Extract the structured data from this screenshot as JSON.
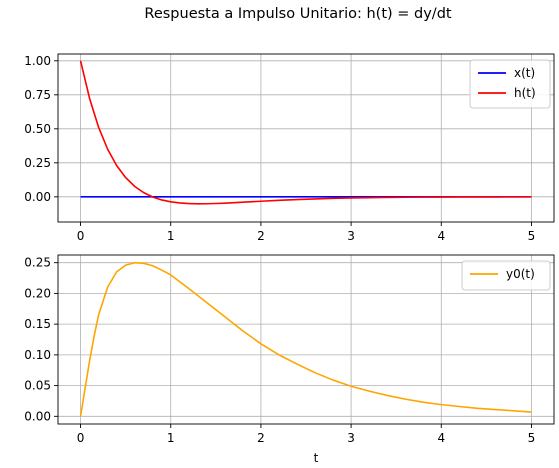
{
  "figure": {
    "title": "Respuesta a Impulso Unitario: h(t) = dy/dt"
  },
  "chart_data": [
    {
      "type": "line",
      "title": "",
      "xlabel": "",
      "ylabel": "",
      "xlim": [
        -0.25,
        5.25
      ],
      "ylim": [
        -0.185,
        1.05
      ],
      "xticks": [
        0,
        1,
        2,
        3,
        4,
        5
      ],
      "xtick_labels": [
        "0",
        "1",
        "2",
        "3",
        "4",
        "5"
      ],
      "yticks": [
        0.0,
        0.25,
        0.5,
        0.75,
        1.0
      ],
      "ytick_labels": [
        "0.00",
        "0.25",
        "0.50",
        "0.75",
        "1.00"
      ],
      "grid": true,
      "legend": "top-right",
      "series": [
        {
          "name": "x(t)",
          "color": "#0000ff",
          "x": [
            0,
            5
          ],
          "y": [
            0,
            0
          ]
        },
        {
          "name": "h(t)",
          "color": "#ff0000",
          "x": [
            0,
            0.1,
            0.2,
            0.3,
            0.4,
            0.5,
            0.6,
            0.7,
            0.8,
            0.9,
            1.0,
            1.1,
            1.2,
            1.3,
            1.4,
            1.5,
            1.6,
            1.8,
            2.0,
            2.2,
            2.4,
            2.6,
            2.8,
            3.0,
            3.2,
            3.4,
            3.6,
            3.8,
            4.0,
            4.2,
            4.4,
            4.6,
            4.8,
            5.0
          ],
          "y": [
            1.0,
            0.7238,
            0.5117,
            0.3507,
            0.2301,
            0.1414,
            0.0769,
            0.0309,
            -0.0011,
            -0.0229,
            -0.0368,
            -0.0452,
            -0.0496,
            -0.0512,
            -0.0508,
            -0.0491,
            -0.0464,
            -0.0397,
            -0.0325,
            -0.0258,
            -0.0199,
            -0.0151,
            -0.0112,
            -0.0082,
            -0.006,
            -0.0043,
            -0.003,
            -0.0021,
            -0.0015,
            -0.001,
            -0.0007,
            -0.0005,
            -0.0003,
            -0.0002
          ]
        }
      ]
    },
    {
      "type": "line",
      "title": "",
      "xlabel": "t",
      "ylabel": "",
      "xlim": [
        -0.25,
        5.25
      ],
      "ylim": [
        -0.0125,
        0.2625
      ],
      "xticks": [
        0,
        1,
        2,
        3,
        4,
        5
      ],
      "xtick_labels": [
        "0",
        "1",
        "2",
        "3",
        "4",
        "5"
      ],
      "yticks": [
        0.0,
        0.05,
        0.1,
        0.15,
        0.2,
        0.25
      ],
      "ytick_labels": [
        "0.00",
        "0.05",
        "0.10",
        "0.15",
        "0.20",
        "0.25"
      ],
      "grid": true,
      "legend": "top-right",
      "series": [
        {
          "name": "y0(t)",
          "color": "#ffa500",
          "x": [
            0,
            0.05,
            0.1,
            0.15,
            0.2,
            0.3,
            0.4,
            0.5,
            0.6,
            0.7,
            0.8,
            0.9,
            1.0,
            1.2,
            1.4,
            1.6,
            1.8,
            2.0,
            2.2,
            2.4,
            2.6,
            2.8,
            3.0,
            3.2,
            3.4,
            3.6,
            3.8,
            4.0,
            4.2,
            4.4,
            4.6,
            4.8,
            5.0
          ],
          "y": [
            0,
            0.045,
            0.09,
            0.13,
            0.165,
            0.21,
            0.235,
            0.246,
            0.25,
            0.249,
            0.245,
            0.238,
            0.23,
            0.208,
            0.185,
            0.162,
            0.139,
            0.118,
            0.1,
            0.085,
            0.071,
            0.059,
            0.049,
            0.041,
            0.034,
            0.028,
            0.023,
            0.019,
            0.016,
            0.013,
            0.011,
            0.009,
            0.007
          ]
        }
      ]
    }
  ]
}
